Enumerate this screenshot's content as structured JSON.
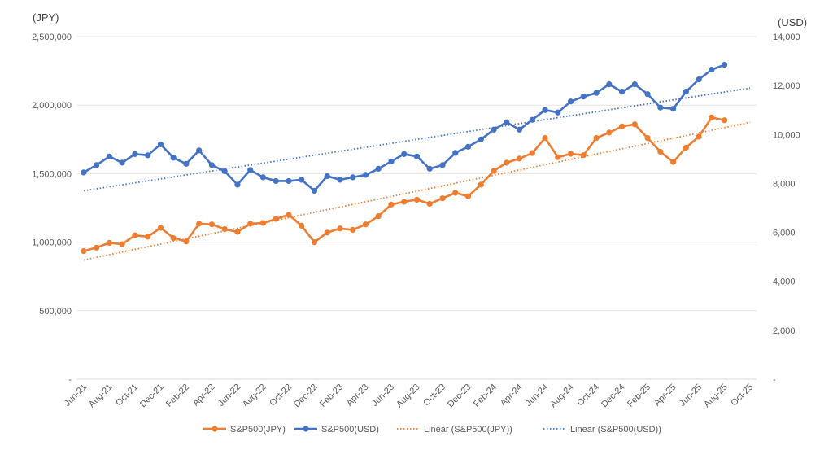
{
  "chart_data": {
    "type": "line",
    "x": [
      "Jun-21",
      "Jul-21",
      "Aug-21",
      "Sep-21",
      "Oct-21",
      "Nov-21",
      "Dec-21",
      "Jan-22",
      "Feb-22",
      "Mar-22",
      "Apr-22",
      "May-22",
      "Jun-22",
      "Jul-22",
      "Aug-22",
      "Sep-22",
      "Oct-22",
      "Nov-22",
      "Dec-22",
      "Jan-23",
      "Feb-23",
      "Mar-23",
      "Apr-23",
      "May-23",
      "Jun-23",
      "Jul-23",
      "Aug-23",
      "Sep-23",
      "Oct-23",
      "Nov-23",
      "Dec-23",
      "Jan-24",
      "Feb-24",
      "Mar-24",
      "Apr-24",
      "May-24",
      "Jun-24",
      "Jul-24",
      "Aug-24",
      "Sep-24",
      "Oct-24",
      "Nov-24",
      "Dec-24",
      "Jan-25",
      "Feb-25",
      "Mar-25",
      "Apr-25",
      "May-25",
      "Jun-25",
      "Jul-25",
      "Aug-25",
      "Sep-25",
      "Oct-25"
    ],
    "x_tick_labels": [
      "Jun-21",
      "Aug-21",
      "Oct-21",
      "Dec-21",
      "Feb-22",
      "Apr-22",
      "Jun-22",
      "Aug-22",
      "Oct-22",
      "Dec-22",
      "Feb-23",
      "Apr-23",
      "Jun-23",
      "Aug-23",
      "Oct-23",
      "Dec-23",
      "Feb-24",
      "Apr-24",
      "Jun-24",
      "Aug-24",
      "Oct-24",
      "Dec-24",
      "Feb-25",
      "Apr-25",
      "Jun-25",
      "Aug-25",
      "Oct-25"
    ],
    "left_axis": {
      "unit_label": "(JPY)",
      "ylim": [
        0,
        2500000
      ],
      "ticks": [
        0,
        500000,
        1000000,
        1500000,
        2000000,
        2500000
      ],
      "tick_labels": [
        "-",
        "500,000",
        "1,000,000",
        "1,500,000",
        "2,000,000",
        "2,500,000"
      ]
    },
    "right_axis": {
      "unit_label": "(USD)",
      "ylim": [
        0,
        14000
      ],
      "ticks": [
        0,
        2000,
        4000,
        6000,
        8000,
        10000,
        12000,
        14000
      ],
      "tick_labels": [
        "-",
        "2,000",
        "4,000",
        "6,000",
        "8,000",
        "10,000",
        "12,000",
        "14,000"
      ]
    },
    "grid": "horizontal",
    "legend_position": "bottom",
    "series": [
      {
        "name": "S&P500(JPY)",
        "axis": "left",
        "style": "line-markers",
        "color": "#ED7D31",
        "values": [
          935000,
          960000,
          995000,
          985000,
          1050000,
          1040000,
          1105000,
          1030000,
          1005000,
          1135000,
          1130000,
          1095000,
          1075000,
          1135000,
          1140000,
          1170000,
          1200000,
          1120000,
          1000000,
          1070000,
          1100000,
          1090000,
          1130000,
          1190000,
          1275000,
          1295000,
          1310000,
          1280000,
          1320000,
          1360000,
          1335000,
          1420000,
          1520000,
          1580000,
          1610000,
          1650000,
          1760000,
          1620000,
          1645000,
          1635000,
          1760000,
          1800000,
          1845000,
          1860000,
          1760000,
          1660000,
          1585000,
          1690000,
          1770000,
          1910000,
          1890000,
          null,
          null
        ]
      },
      {
        "name": "S&P500(USD)",
        "axis": "right",
        "style": "line-markers",
        "color": "#4472C4",
        "values": [
          8450,
          8750,
          9100,
          8850,
          9200,
          9150,
          9600,
          9050,
          8800,
          9350,
          8750,
          8500,
          7950,
          8550,
          8250,
          8100,
          8100,
          8150,
          7700,
          8300,
          8150,
          8250,
          8350,
          8600,
          8900,
          9200,
          9100,
          8600,
          8750,
          9250,
          9500,
          9800,
          10200,
          10500,
          10200,
          10600,
          11000,
          10900,
          11350,
          11550,
          11700,
          12050,
          11750,
          12050,
          11650,
          11100,
          11050,
          11750,
          12250,
          12650,
          12850,
          null,
          null
        ]
      },
      {
        "name": "Linear (S&P500(JPY))",
        "axis": "left",
        "style": "dotted",
        "color": "#ED7D31",
        "values": [
          870000,
          null,
          null,
          null,
          null,
          null,
          null,
          null,
          null,
          null,
          null,
          null,
          null,
          null,
          null,
          null,
          null,
          null,
          null,
          null,
          null,
          null,
          null,
          null,
          null,
          null,
          null,
          null,
          null,
          null,
          null,
          null,
          null,
          null,
          null,
          null,
          null,
          null,
          null,
          null,
          null,
          null,
          null,
          null,
          null,
          null,
          null,
          null,
          null,
          null,
          null,
          null,
          1875000
        ]
      },
      {
        "name": "Linear (S&P500(USD))",
        "axis": "right",
        "style": "dotted",
        "color": "#4472C4",
        "values": [
          7700,
          null,
          null,
          null,
          null,
          null,
          null,
          null,
          null,
          null,
          null,
          null,
          null,
          null,
          null,
          null,
          null,
          null,
          null,
          null,
          null,
          null,
          null,
          null,
          null,
          null,
          null,
          null,
          null,
          null,
          null,
          null,
          null,
          null,
          null,
          null,
          null,
          null,
          null,
          null,
          null,
          null,
          null,
          null,
          null,
          null,
          null,
          null,
          null,
          null,
          null,
          null,
          11900
        ]
      }
    ]
  }
}
